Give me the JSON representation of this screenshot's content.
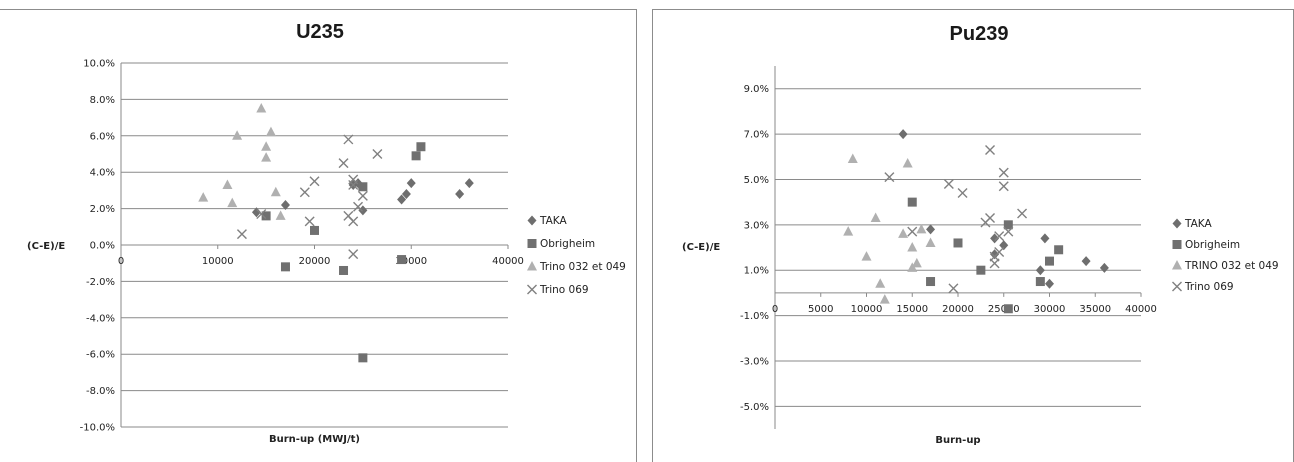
{
  "chart_data": [
    {
      "type": "scatter",
      "title": "U235",
      "xlabel": "Burn-up (MWJ/t)",
      "ylabel": "(C-E)/E",
      "xlim": [
        0,
        40000
      ],
      "ylim": [
        -0.1,
        0.1
      ],
      "x_ticks": [
        "0",
        "10000",
        "20000",
        "30000",
        "40000"
      ],
      "y_ticks": [
        "10.0%",
        "8.0%",
        "6.0%",
        "4.0%",
        "2.0%",
        "0.0%",
        "-2.0%",
        "-4.0%",
        "-6.0%",
        "-8.0%",
        "-10.0%"
      ],
      "grid": "horizontal",
      "legend_position": "right",
      "series": [
        {
          "name": "TAKA",
          "marker": "diamond",
          "color": "#6e6e6e",
          "points": [
            [
              14000,
              0.018
            ],
            [
              17000,
              0.022
            ],
            [
              24000,
              0.033
            ],
            [
              24500,
              0.034
            ],
            [
              25000,
              0.019
            ],
            [
              29000,
              0.025
            ],
            [
              29500,
              0.028
            ],
            [
              30000,
              0.034
            ],
            [
              35000,
              0.028
            ],
            [
              36000,
              0.034
            ]
          ]
        },
        {
          "name": "Obrigheim",
          "marker": "square",
          "color": "#707070",
          "points": [
            [
              15000,
              0.016
            ],
            [
              17000,
              -0.012
            ],
            [
              20000,
              0.008
            ],
            [
              23000,
              -0.014
            ],
            [
              25000,
              0.032
            ],
            [
              25000,
              -0.062
            ],
            [
              29000,
              -0.008
            ],
            [
              30500,
              0.049
            ],
            [
              31000,
              0.054
            ]
          ]
        },
        {
          "name": "Trino 032 et 049",
          "marker": "triangle",
          "color": "#b0b0b0",
          "points": [
            [
              8500,
              0.026
            ],
            [
              11000,
              0.033
            ],
            [
              11500,
              0.023
            ],
            [
              12000,
              0.06
            ],
            [
              14500,
              0.075
            ],
            [
              15000,
              0.054
            ],
            [
              15000,
              0.048
            ],
            [
              15500,
              0.062
            ],
            [
              16000,
              0.029
            ],
            [
              16500,
              0.016
            ]
          ]
        },
        {
          "name": "Trino 069",
          "marker": "x",
          "color": "#808080",
          "points": [
            [
              12500,
              0.006
            ],
            [
              14500,
              0.017
            ],
            [
              19000,
              0.029
            ],
            [
              19500,
              0.013
            ],
            [
              20000,
              0.035
            ],
            [
              23000,
              0.045
            ],
            [
              23500,
              0.058
            ],
            [
              23500,
              0.016
            ],
            [
              24000,
              0.036
            ],
            [
              24000,
              0.033
            ],
            [
              24000,
              0.013
            ],
            [
              24000,
              -0.005
            ],
            [
              24500,
              0.021
            ],
            [
              25000,
              0.027
            ],
            [
              26500,
              0.05
            ]
          ]
        }
      ]
    },
    {
      "type": "scatter",
      "title": "Pu239",
      "xlabel": "Burn-up",
      "ylabel": "(C-E)/E",
      "xlim": [
        0,
        40000
      ],
      "ylim": [
        -0.06,
        0.1
      ],
      "x_ticks": [
        "0",
        "5000",
        "10000",
        "15000",
        "20000",
        "25000",
        "30000",
        "35000",
        "40000"
      ],
      "y_ticks": [
        "9.0%",
        "7.0%",
        "5.0%",
        "3.0%",
        "1.0%",
        "-1.0%",
        "-3.0%",
        "-5.0%"
      ],
      "grid": "horizontal",
      "legend_position": "right",
      "series": [
        {
          "name": "TAKA",
          "marker": "diamond",
          "color": "#6e6e6e",
          "points": [
            [
              14000,
              0.07
            ],
            [
              17000,
              0.028
            ],
            [
              24000,
              0.024
            ],
            [
              24000,
              0.017
            ],
            [
              25000,
              0.021
            ],
            [
              29000,
              0.01
            ],
            [
              29500,
              0.024
            ],
            [
              30000,
              0.004
            ],
            [
              34000,
              0.014
            ],
            [
              36000,
              0.011
            ]
          ]
        },
        {
          "name": "Obrigheim",
          "marker": "square",
          "color": "#707070",
          "points": [
            [
              15000,
              0.04
            ],
            [
              17000,
              0.005
            ],
            [
              20000,
              0.022
            ],
            [
              22500,
              0.01
            ],
            [
              25500,
              0.03
            ],
            [
              25500,
              -0.007
            ],
            [
              29000,
              0.005
            ],
            [
              30000,
              0.014
            ],
            [
              31000,
              0.019
            ]
          ]
        },
        {
          "name": "TRINO 032 et 049",
          "marker": "triangle",
          "color": "#b0b0b0",
          "points": [
            [
              8000,
              0.027
            ],
            [
              8500,
              0.059
            ],
            [
              10000,
              0.016
            ],
            [
              11000,
              0.033
            ],
            [
              11500,
              0.004
            ],
            [
              12000,
              -0.003
            ],
            [
              14000,
              0.026
            ],
            [
              14500,
              0.057
            ],
            [
              15000,
              0.02
            ],
            [
              15000,
              0.011
            ],
            [
              15500,
              0.013
            ],
            [
              16000,
              0.028
            ],
            [
              17000,
              0.022
            ]
          ]
        },
        {
          "name": "Trino 069",
          "marker": "x",
          "color": "#808080",
          "points": [
            [
              12500,
              0.051
            ],
            [
              15000,
              0.027
            ],
            [
              19000,
              0.048
            ],
            [
              19500,
              0.002
            ],
            [
              20500,
              0.044
            ],
            [
              23000,
              0.031
            ],
            [
              23500,
              0.063
            ],
            [
              23500,
              0.033
            ],
            [
              24000,
              0.016
            ],
            [
              24000,
              0.013
            ],
            [
              24500,
              0.018
            ],
            [
              24500,
              0.025
            ],
            [
              25000,
              0.053
            ],
            [
              25000,
              0.047
            ],
            [
              25500,
              0.027
            ],
            [
              27000,
              0.035
            ]
          ]
        }
      ]
    }
  ]
}
